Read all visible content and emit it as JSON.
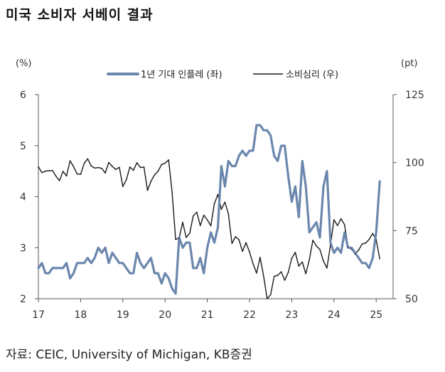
{
  "title": "미국 소비자 서베이 결과",
  "source": "자료: CEIC, University of Michigan, KB증권",
  "chart_data": {
    "type": "line",
    "left_axis": {
      "unit": "(%)",
      "min": 2,
      "max": 6,
      "ticks": [
        "2",
        "3",
        "4",
        "5",
        "6"
      ]
    },
    "right_axis": {
      "unit": "(pt)",
      "min": 50,
      "max": 125,
      "ticks": [
        "50",
        "75",
        "100",
        "125"
      ]
    },
    "x_axis": {
      "min": 2017.0,
      "max": 2025.4,
      "ticks": [
        "17",
        "18",
        "19",
        "20",
        "21",
        "22",
        "23",
        "24",
        "25"
      ]
    },
    "legend_placement": "top-center",
    "colors": {
      "inflation": "#6b87ad",
      "sentiment": "#1a1a1a"
    },
    "series": [
      {
        "name": "1년 기대 인플레 (좌)",
        "axis": "left",
        "x_start": "2017-01",
        "frequency": "monthly",
        "values": [
          2.6,
          2.7,
          2.5,
          2.5,
          2.6,
          2.6,
          2.6,
          2.6,
          2.7,
          2.4,
          2.5,
          2.7,
          2.7,
          2.7,
          2.8,
          2.7,
          2.8,
          3.0,
          2.9,
          3.0,
          2.7,
          2.9,
          2.8,
          2.7,
          2.7,
          2.6,
          2.5,
          2.5,
          2.9,
          2.7,
          2.6,
          2.7,
          2.8,
          2.5,
          2.5,
          2.3,
          2.5,
          2.4,
          2.2,
          2.1,
          3.2,
          3.0,
          3.1,
          3.1,
          2.6,
          2.6,
          2.8,
          2.5,
          3.0,
          3.3,
          3.1,
          3.4,
          4.6,
          4.2,
          4.7,
          4.6,
          4.6,
          4.8,
          4.9,
          4.8,
          4.9,
          4.9,
          5.4,
          5.4,
          5.3,
          5.3,
          5.2,
          4.8,
          4.7,
          5.0,
          5.0,
          4.4,
          3.9,
          4.2,
          3.6,
          4.7,
          4.2,
          3.3,
          3.4,
          3.5,
          3.2,
          4.2,
          4.5,
          3.1,
          2.9,
          3.0,
          2.9,
          3.3,
          3.0,
          3.0,
          2.9,
          2.8,
          2.7,
          2.7,
          2.6,
          2.8,
          3.3,
          4.3
        ]
      },
      {
        "name": "소비심리 (우)",
        "axis": "right",
        "x_start": "2017-01",
        "frequency": "monthly",
        "values": [
          98.5,
          96.3,
          96.9,
          97.0,
          97.1,
          95.0,
          93.4,
          96.8,
          95.1,
          100.7,
          98.5,
          95.9,
          95.7,
          99.7,
          101.4,
          98.8,
          98.0,
          98.2,
          97.9,
          96.2,
          100.1,
          98.6,
          97.5,
          98.3,
          91.2,
          93.8,
          98.4,
          97.2,
          100.0,
          98.2,
          98.4,
          89.8,
          93.2,
          95.5,
          96.8,
          99.3,
          99.8,
          101.0,
          89.1,
          71.8,
          72.3,
          78.1,
          72.5,
          74.1,
          80.4,
          81.8,
          76.9,
          80.7,
          79.0,
          76.8,
          84.9,
          88.3,
          82.9,
          85.5,
          81.2,
          70.3,
          72.8,
          71.7,
          67.4,
          70.6,
          67.2,
          62.8,
          59.4,
          65.2,
          58.4,
          50.0,
          51.5,
          58.2,
          58.6,
          59.9,
          56.8,
          59.7,
          64.9,
          67.0,
          62.0,
          63.5,
          59.2,
          64.4,
          71.5,
          69.4,
          68.1,
          63.8,
          61.3,
          69.7,
          79.0,
          76.9,
          79.4,
          77.2,
          69.1,
          68.2,
          66.4,
          67.9,
          70.1,
          70.5,
          71.8,
          74.0,
          71.7,
          64.7
        ]
      }
    ]
  }
}
